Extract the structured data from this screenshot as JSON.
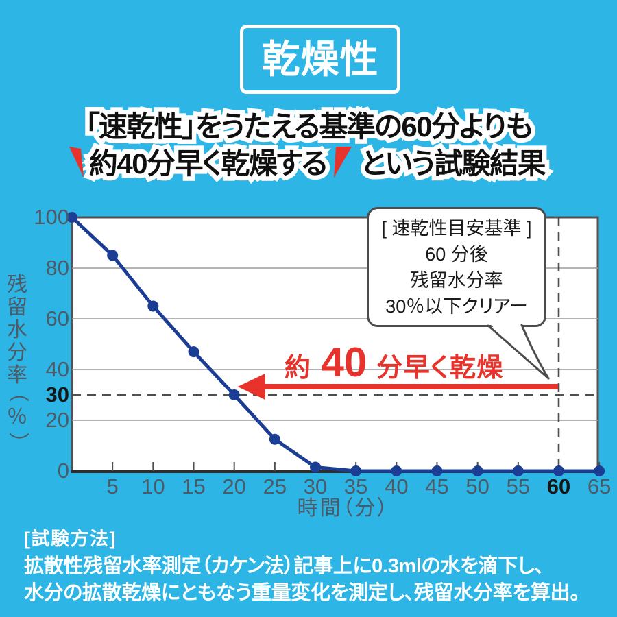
{
  "colors": {
    "background": "#2cb5e5",
    "line": "#1b3e94",
    "red": "#e7332b",
    "gridline": "#9b9b9b",
    "plot_border": "#515254",
    "axis_bottom": "#2d2d2f",
    "dashed": "#4d4e50",
    "axis_text": "#4e5a66",
    "bubble_border": "#4c4c4c",
    "white": "#ffffff"
  },
  "badge": {
    "label": "乾燥性"
  },
  "headline": {
    "line1": "「速乾性」をうたえる基準の60分よりも",
    "line2_emphasized": "約40分早く乾燥する",
    "line2_rest": "という試験結果"
  },
  "chart_data": {
    "type": "line",
    "title": "",
    "xlabel": "時間（分）",
    "ylabel": "残留水分率（％）",
    "x": [
      0,
      5,
      10,
      15,
      20,
      25,
      30,
      35,
      40,
      45,
      50,
      55,
      60,
      65
    ],
    "values": [
      100,
      85,
      65,
      47,
      30,
      12.5,
      1.5,
      0,
      0,
      0,
      0,
      0,
      0,
      0
    ],
    "series_name": "残留水分率",
    "xlim": [
      0,
      65
    ],
    "ylim": [
      0,
      100
    ],
    "x_ticks": [
      5,
      10,
      15,
      20,
      25,
      30,
      35,
      40,
      45,
      50,
      55,
      60,
      65
    ],
    "x_tick_emphasized": 60,
    "y_ticks": [
      100,
      80,
      60,
      40,
      30,
      20,
      0
    ],
    "y_tick_emphasized": 30,
    "y_gridlines": [
      20,
      40,
      60,
      80
    ],
    "grid": true,
    "legend": false,
    "dashed_h_value": 30,
    "dashed_v_value": 60,
    "arrow": {
      "from_min": 60,
      "to_min": 20,
      "at_percent": 30
    },
    "annotation": {
      "prefix": "約",
      "number": "40",
      "suffix": "分早く乾燥"
    },
    "callout": {
      "lines": [
        "[ 速乾性目安基準 ]",
        "60 分後",
        "残留水分率",
        "30％以下クリアー"
      ]
    }
  },
  "notes": {
    "heading": "[試験方法]",
    "line1": "拡散性残留水率測定（カケン法）記事上に0.3mlの水を滴下し、",
    "line2": "水分の拡散乾燥にともなう重量変化を測定し、残留水分率を算出。"
  }
}
